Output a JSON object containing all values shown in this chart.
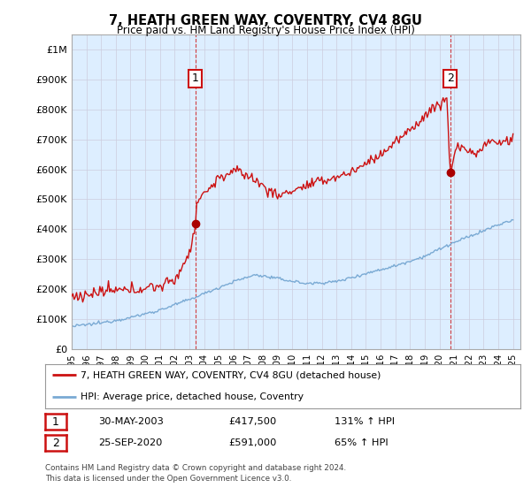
{
  "title": "7, HEATH GREEN WAY, COVENTRY, CV4 8GU",
  "subtitle": "Price paid vs. HM Land Registry's House Price Index (HPI)",
  "ylim": [
    0,
    1050000
  ],
  "yticks": [
    0,
    100000,
    200000,
    300000,
    400000,
    500000,
    600000,
    700000,
    800000,
    900000,
    1000000
  ],
  "ytick_labels": [
    "£0",
    "£100K",
    "£200K",
    "£300K",
    "£400K",
    "£500K",
    "£600K",
    "£700K",
    "£800K",
    "£900K",
    "£1M"
  ],
  "hpi_color": "#7aaad4",
  "price_color": "#cc1111",
  "dot_color": "#aa0000",
  "annotation_box_color": "#cc1111",
  "chart_bg_color": "#ddeeff",
  "sale1_year": 2003.41,
  "sale1_price": 417500,
  "sale1_label": "1",
  "sale2_year": 2020.73,
  "sale2_price": 591000,
  "sale2_label": "2",
  "legend_line1": "7, HEATH GREEN WAY, COVENTRY, CV4 8GU (detached house)",
  "legend_line2": "HPI: Average price, detached house, Coventry",
  "table_row1_num": "1",
  "table_row1_date": "30-MAY-2003",
  "table_row1_price": "£417,500",
  "table_row1_hpi": "131% ↑ HPI",
  "table_row2_num": "2",
  "table_row2_date": "25-SEP-2020",
  "table_row2_price": "£591,000",
  "table_row2_hpi": "65% ↑ HPI",
  "footer": "Contains HM Land Registry data © Crown copyright and database right 2024.\nThis data is licensed under the Open Government Licence v3.0.",
  "background_color": "#ffffff",
  "grid_color": "#ccccdd"
}
